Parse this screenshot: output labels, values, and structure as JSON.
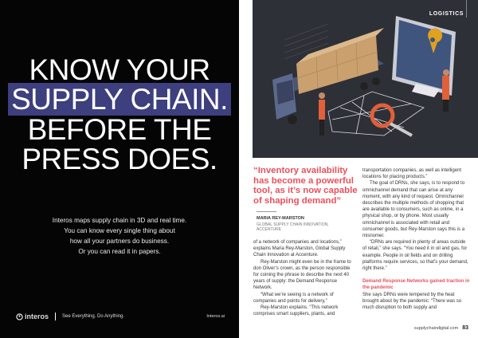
{
  "ad": {
    "headline": [
      "KNOW YOUR",
      "SUPPLY CHAIN.",
      "BEFORE THE",
      "PRESS DOES."
    ],
    "highlight_color": "#3d3f7e",
    "body": [
      "Interos maps supply chain in 3D and real time.",
      "You can know every single thing about",
      "how all your partners do business.",
      "Or you can read it in papers."
    ],
    "logo": "interos",
    "slogan": "See Everything. Do Anything.",
    "url": "Interos.ai"
  },
  "article": {
    "section": "LOGISTICS",
    "quote": "“Inventory availability has become a powerful tool, as it’s now capable of shaping demand”",
    "quote_color": "#e8505b",
    "speaker": "MARIA REY-MARSTON",
    "speaker_role": "GLOBAL SUPPLY CHAIN INNOVATION, ACCENTURE",
    "col1": [
      "of a network of companies and locations,” explains Maria Rey-Marston, Global Supply Chain Innovation at Accenture.",
      "Rey-Marston might even be in the frame to don Oliver’s crown, as the person responsible for coining the phrase to describe the next 40 years of supply: the Demand Response Network.",
      "“What we’re seeing is a network of companies and points for delivery,”",
      "Rey-Marston explains. “This network comprises smart suppliers, plants, and"
    ],
    "col2": [
      "transportation companies, as well as intelligent locations for placing products.”",
      "The goal of DRNs, she says, is to respond to omnichannel demand that can arise at any moment, with any kind of request. Omnichannel describes the multiple methods of shopping that are available to consumers, such as online, in a physical shop, or by phone. Most usually omnichannel is associated with retail and consumer goods, but Rey-Marston says this is a misnomer.",
      "“DRNs are required in plenty of areas outside of retail,” she says. “You need it in oil and gas, for example. People in oil fields and on drilling platforms require services, so that’s your demand, right there.”"
    ],
    "subheading": "Demand Response Networks gained traction in the pandemic",
    "col2_after": "She says DRNs were tempered by the heat brought about by the pandemic: “There was so much disruption to both supply and",
    "footer_url": "supplychaindigital.com",
    "page_number": "83"
  }
}
